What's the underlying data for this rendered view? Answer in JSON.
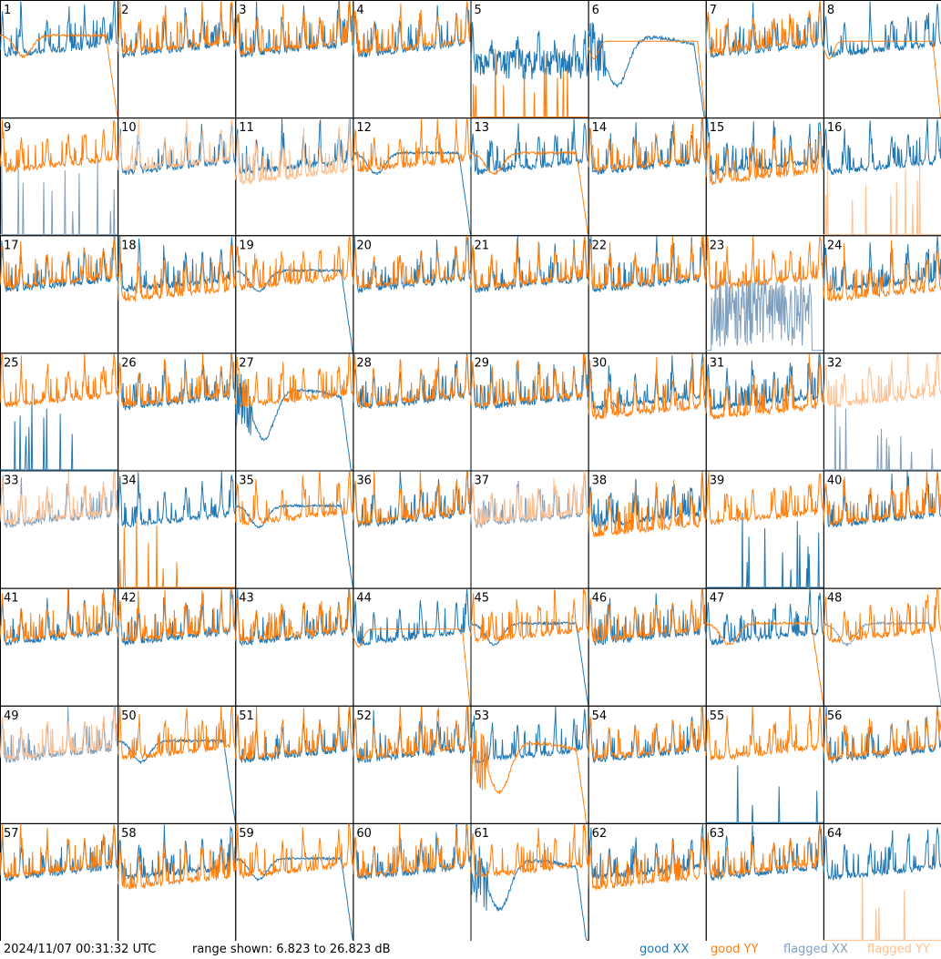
{
  "footer": {
    "timestamp": "2024/11/07 00:31:32 UTC",
    "range_text": "range shown: 6.823 to 26.823 dB"
  },
  "legend": [
    {
      "label": "good XX",
      "color": "#1f77b4"
    },
    {
      "label": "good YY",
      "color": "#ff7f0e"
    },
    {
      "label": "flagged XX",
      "color": "#7f9fbf"
    },
    {
      "label": "flagged YY",
      "color": "#ffbf8f"
    }
  ],
  "chart_data": {
    "type": "line",
    "ylim": [
      6.823,
      26.823
    ],
    "grid": {
      "rows": 8,
      "cols": 8
    },
    "panels": [
      {
        "id": "1",
        "xx": "good",
        "yy": "good",
        "xx_shape": "normal",
        "yy_shape": "smooth_dip"
      },
      {
        "id": "2",
        "xx": "good",
        "yy": "good",
        "xx_shape": "normal",
        "yy_shape": "normal"
      },
      {
        "id": "3",
        "xx": "good",
        "yy": "good",
        "xx_shape": "normal",
        "yy_shape": "normal"
      },
      {
        "id": "4",
        "xx": "good",
        "yy": "good",
        "xx_shape": "normal",
        "yy_shape": "normal"
      },
      {
        "id": "5",
        "xx": "good",
        "yy": "good",
        "xx_shape": "noisy_low",
        "yy_shape": "spikes"
      },
      {
        "id": "6",
        "xx": "good",
        "yy": "good",
        "xx_shape": "deep_dip",
        "yy_shape": "smooth_flat"
      },
      {
        "id": "7",
        "xx": "good",
        "yy": "good",
        "xx_shape": "normal",
        "yy_shape": "normal"
      },
      {
        "id": "8",
        "xx": "good",
        "yy": "good",
        "xx_shape": "normal",
        "yy_shape": "smooth_flat"
      },
      {
        "id": "9",
        "xx": "flagged",
        "yy": "good",
        "xx_shape": "spikes",
        "yy_shape": "normal"
      },
      {
        "id": "10",
        "xx": "good",
        "yy": "flagged",
        "xx_shape": "normal",
        "yy_shape": "normal"
      },
      {
        "id": "11",
        "xx": "good",
        "yy": "flagged",
        "xx_shape": "normal",
        "yy_shape": "low"
      },
      {
        "id": "12",
        "xx": "good",
        "yy": "good",
        "xx_shape": "smooth_dip",
        "yy_shape": "normal"
      },
      {
        "id": "13",
        "xx": "good",
        "yy": "good",
        "xx_shape": "normal",
        "yy_shape": "smooth_dip"
      },
      {
        "id": "14",
        "xx": "good",
        "yy": "good",
        "xx_shape": "normal",
        "yy_shape": "normal"
      },
      {
        "id": "15",
        "xx": "good",
        "yy": "good",
        "xx_shape": "normal",
        "yy_shape": "low"
      },
      {
        "id": "16",
        "xx": "good",
        "yy": "flagged",
        "xx_shape": "normal",
        "yy_shape": "spikes"
      },
      {
        "id": "17",
        "xx": "good",
        "yy": "good",
        "xx_shape": "normal",
        "yy_shape": "normal"
      },
      {
        "id": "18",
        "xx": "good",
        "yy": "good",
        "xx_shape": "normal",
        "yy_shape": "low"
      },
      {
        "id": "19",
        "xx": "good",
        "yy": "good",
        "xx_shape": "smooth_dip",
        "yy_shape": "normal"
      },
      {
        "id": "20",
        "xx": "good",
        "yy": "good",
        "xx_shape": "normal",
        "yy_shape": "normal"
      },
      {
        "id": "21",
        "xx": "good",
        "yy": "good",
        "xx_shape": "normal",
        "yy_shape": "normal"
      },
      {
        "id": "22",
        "xx": "good",
        "yy": "good",
        "xx_shape": "normal",
        "yy_shape": "normal"
      },
      {
        "id": "23",
        "xx": "flagged",
        "yy": "good",
        "xx_shape": "noise_full",
        "yy_shape": "normal"
      },
      {
        "id": "24",
        "xx": "good",
        "yy": "good",
        "xx_shape": "normal",
        "yy_shape": "low"
      },
      {
        "id": "25",
        "xx": "good",
        "yy": "good",
        "xx_shape": "spikes",
        "yy_shape": "normal"
      },
      {
        "id": "26",
        "xx": "good",
        "yy": "good",
        "xx_shape": "normal",
        "yy_shape": "normal"
      },
      {
        "id": "27",
        "xx": "good",
        "yy": "good",
        "xx_shape": "deep_dip",
        "yy_shape": "normal"
      },
      {
        "id": "28",
        "xx": "good",
        "yy": "good",
        "xx_shape": "normal",
        "yy_shape": "normal"
      },
      {
        "id": "29",
        "xx": "good",
        "yy": "good",
        "xx_shape": "normal",
        "yy_shape": "normal"
      },
      {
        "id": "30",
        "xx": "good",
        "yy": "good",
        "xx_shape": "normal",
        "yy_shape": "low"
      },
      {
        "id": "31",
        "xx": "good",
        "yy": "good",
        "xx_shape": "normal",
        "yy_shape": "low"
      },
      {
        "id": "32",
        "xx": "flagged",
        "yy": "flagged",
        "xx_shape": "spikes",
        "yy_shape": "normal"
      },
      {
        "id": "33",
        "xx": "flagged",
        "yy": "flagged",
        "xx_shape": "normal",
        "yy_shape": "normal"
      },
      {
        "id": "34",
        "xx": "good",
        "yy": "good",
        "xx_shape": "normal",
        "yy_shape": "spikes"
      },
      {
        "id": "35",
        "xx": "good",
        "yy": "good",
        "xx_shape": "smooth_dip",
        "yy_shape": "normal"
      },
      {
        "id": "36",
        "xx": "good",
        "yy": "good",
        "xx_shape": "normal",
        "yy_shape": "normal"
      },
      {
        "id": "37",
        "xx": "flagged",
        "yy": "flagged",
        "xx_shape": "normal",
        "yy_shape": "normal"
      },
      {
        "id": "38",
        "xx": "good",
        "yy": "good",
        "xx_shape": "normal",
        "yy_shape": "low"
      },
      {
        "id": "39",
        "xx": "good",
        "yy": "good",
        "xx_shape": "spikes",
        "yy_shape": "normal"
      },
      {
        "id": "40",
        "xx": "good",
        "yy": "good",
        "xx_shape": "normal",
        "yy_shape": "normal"
      },
      {
        "id": "41",
        "xx": "good",
        "yy": "good",
        "xx_shape": "normal",
        "yy_shape": "normal"
      },
      {
        "id": "42",
        "xx": "good",
        "yy": "good",
        "xx_shape": "normal",
        "yy_shape": "normal"
      },
      {
        "id": "43",
        "xx": "good",
        "yy": "good",
        "xx_shape": "normal",
        "yy_shape": "normal"
      },
      {
        "id": "44",
        "xx": "good",
        "yy": "good",
        "xx_shape": "normal",
        "yy_shape": "smooth_flat"
      },
      {
        "id": "45",
        "xx": "good",
        "yy": "good",
        "xx_shape": "smooth_dip",
        "yy_shape": "normal"
      },
      {
        "id": "46",
        "xx": "good",
        "yy": "good",
        "xx_shape": "normal",
        "yy_shape": "normal"
      },
      {
        "id": "47",
        "xx": "good",
        "yy": "good",
        "xx_shape": "normal",
        "yy_shape": "smooth_dip"
      },
      {
        "id": "48",
        "xx": "flagged",
        "yy": "good",
        "xx_shape": "smooth_dip",
        "yy_shape": "normal"
      },
      {
        "id": "49",
        "xx": "flagged",
        "yy": "flagged",
        "xx_shape": "normal",
        "yy_shape": "normal"
      },
      {
        "id": "50",
        "xx": "good",
        "yy": "good",
        "xx_shape": "smooth_dip",
        "yy_shape": "normal"
      },
      {
        "id": "51",
        "xx": "good",
        "yy": "good",
        "xx_shape": "normal",
        "yy_shape": "normal"
      },
      {
        "id": "52",
        "xx": "good",
        "yy": "good",
        "xx_shape": "normal",
        "yy_shape": "normal"
      },
      {
        "id": "53",
        "xx": "good",
        "yy": "good",
        "xx_shape": "normal",
        "yy_shape": "deep_dip"
      },
      {
        "id": "54",
        "xx": "good",
        "yy": "good",
        "xx_shape": "normal",
        "yy_shape": "normal"
      },
      {
        "id": "55",
        "xx": "good",
        "yy": "good",
        "xx_shape": "spikes",
        "yy_shape": "normal"
      },
      {
        "id": "56",
        "xx": "good",
        "yy": "good",
        "xx_shape": "normal",
        "yy_shape": "normal"
      },
      {
        "id": "57",
        "xx": "good",
        "yy": "good",
        "xx_shape": "normal",
        "yy_shape": "normal"
      },
      {
        "id": "58",
        "xx": "good",
        "yy": "good",
        "xx_shape": "normal",
        "yy_shape": "low"
      },
      {
        "id": "59",
        "xx": "good",
        "yy": "good",
        "xx_shape": "smooth_dip",
        "yy_shape": "normal"
      },
      {
        "id": "60",
        "xx": "good",
        "yy": "good",
        "xx_shape": "normal",
        "yy_shape": "normal"
      },
      {
        "id": "61",
        "xx": "good",
        "yy": "good",
        "xx_shape": "deep_dip",
        "yy_shape": "normal"
      },
      {
        "id": "62",
        "xx": "good",
        "yy": "good",
        "xx_shape": "normal",
        "yy_shape": "low"
      },
      {
        "id": "63",
        "xx": "good",
        "yy": "good",
        "xx_shape": "normal",
        "yy_shape": "normal"
      },
      {
        "id": "64",
        "xx": "good",
        "yy": "flagged",
        "xx_shape": "normal",
        "yy_shape": "spikes"
      }
    ]
  }
}
